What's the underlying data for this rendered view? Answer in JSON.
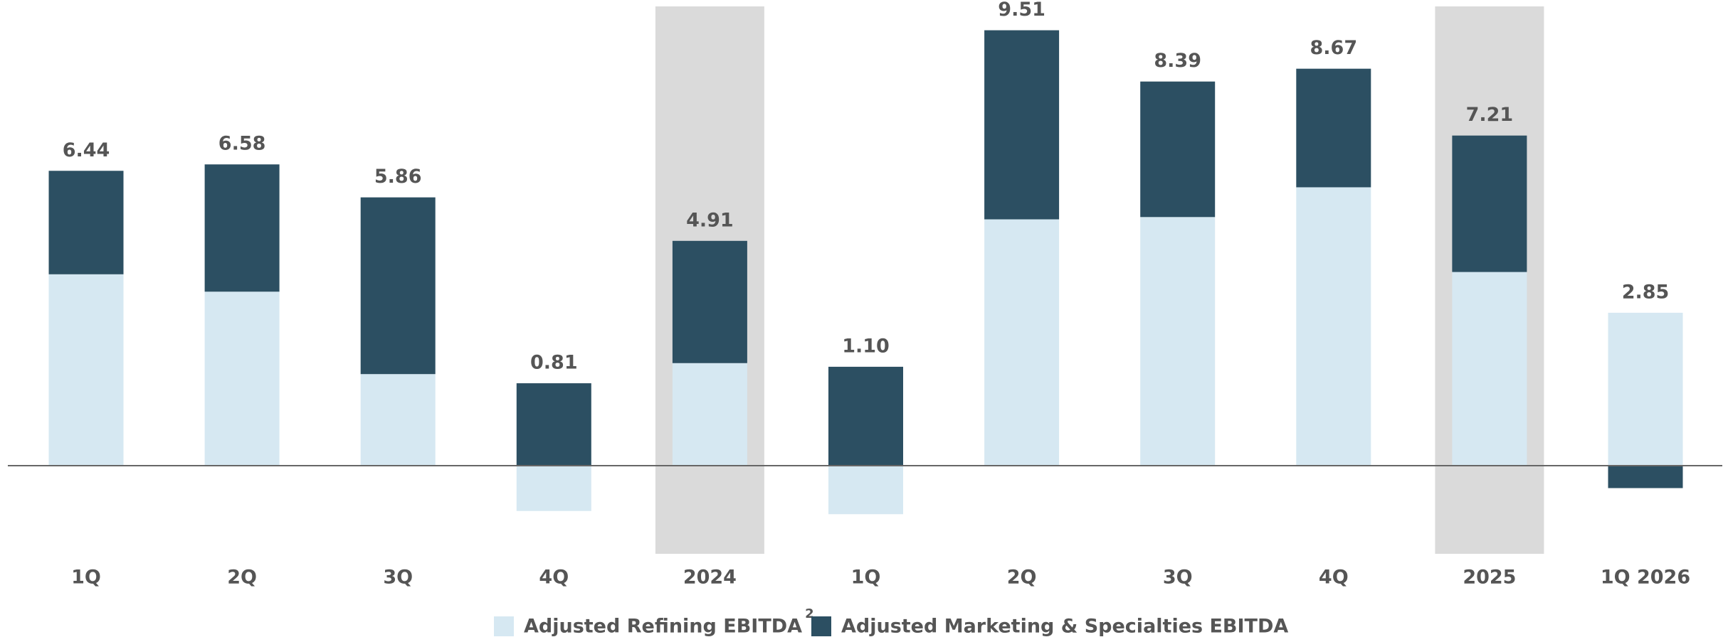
{
  "chart_data": {
    "type": "stacked_bar",
    "categories": [
      "1Q",
      "2Q",
      "3Q",
      "4Q",
      "2024",
      "1Q",
      "2Q",
      "3Q",
      "4Q",
      "2025",
      "1Q 2026"
    ],
    "series": [
      {
        "name": "Adjusted Refining EBITDA",
        "color": "#d6e8f2",
        "values": [
          4.18,
          3.8,
          2.0,
          -0.99,
          2.24,
          -1.06,
          5.38,
          5.43,
          6.08,
          4.23,
          3.34
        ]
      },
      {
        "name": "Adjusted Marketing & Specialties EBITDA",
        "color": "#2c4f62",
        "values": [
          2.26,
          2.78,
          3.86,
          1.8,
          2.67,
          2.16,
          4.13,
          2.96,
          2.59,
          2.98,
          -0.49
        ]
      }
    ],
    "totals": [
      6.44,
      6.58,
      5.86,
      0.81,
      4.91,
      1.1,
      9.51,
      8.39,
      8.67,
      7.21,
      2.85
    ],
    "value_labels": [
      "6.44",
      "6.58",
      "5.86",
      "0.81",
      "4.91",
      "1.10",
      "9.51",
      "8.39",
      "8.67",
      "7.21",
      "2.85"
    ],
    "footnote": "2",
    "highlight_indices": [
      4,
      9
    ],
    "highlight_color": "#dadada",
    "legend": "bottom"
  }
}
